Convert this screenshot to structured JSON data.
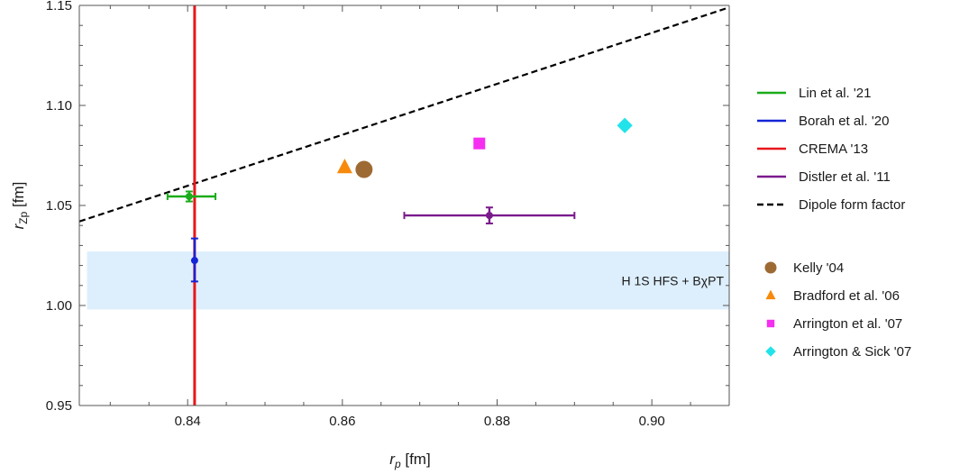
{
  "chart_data": {
    "type": "scatter",
    "xlabel": "r_p [fm]",
    "ylabel": "r_Zp [fm]",
    "xlim": [
      0.826,
      0.91
    ],
    "ylim": [
      0.95,
      1.15
    ],
    "xticks": [
      0.84,
      0.86,
      0.88,
      0.9
    ],
    "yticks": [
      0.95,
      1.0,
      1.05,
      1.1,
      1.15
    ],
    "x_tick_labels": [
      "0.84",
      "0.86",
      "0.88",
      "0.90"
    ],
    "y_tick_labels": [
      "0.95",
      "1.00",
      "1.05",
      "1.10",
      "1.15"
    ],
    "grid": false,
    "legend_position": "right",
    "band": {
      "name": "H 1S HFS + BχPT",
      "x_range": [
        0.827,
        0.91
      ],
      "y_range": [
        0.998,
        1.027
      ],
      "color": "#ddeefc"
    },
    "dipole_line": {
      "name": "Dipole form factor",
      "x": [
        0.826,
        0.91
      ],
      "y": [
        1.042,
        1.149
      ],
      "color": "#000000",
      "style": "dashed"
    },
    "vertical_line": {
      "name": "CREMA '13",
      "x": 0.8409,
      "color": "#e8171c"
    },
    "error_points": [
      {
        "name": "Lin et al. '21",
        "x": 0.8402,
        "y": 1.0545,
        "x_err": [
          0.0028,
          0.0034
        ],
        "y_err": [
          0.0025,
          0.0025
        ],
        "color": "#1aac1a"
      },
      {
        "name": "Borah et al. '20",
        "x": 0.8409,
        "y": 1.0225,
        "x_err": [
          0,
          0
        ],
        "y_err": [
          0.0105,
          0.011
        ],
        "color": "#1424d6"
      },
      {
        "name": "Distler et al. '11",
        "x": 0.879,
        "y": 1.045,
        "x_err": [
          0.011,
          0.011
        ],
        "y_err": [
          0.004,
          0.004
        ],
        "color": "#7a1a8c"
      }
    ],
    "markers": [
      {
        "name": "Kelly '04",
        "x": 0.8628,
        "y": 1.068,
        "shape": "circle",
        "color": "#9e6a34"
      },
      {
        "name": "Bradford et al. '06",
        "x": 0.8603,
        "y": 1.069,
        "shape": "triangle",
        "color": "#f78a0c"
      },
      {
        "name": "Arrington et al. '07",
        "x": 0.8777,
        "y": 1.081,
        "shape": "square",
        "color": "#f52ef0"
      },
      {
        "name": "Arrington & Sick '07",
        "x": 0.8965,
        "y": 1.09,
        "shape": "diamond",
        "color": "#22e3ea"
      }
    ],
    "legend_lines": [
      {
        "label": "Lin et al. '21",
        "color": "#1aac1a",
        "style": "solid"
      },
      {
        "label": "Borah et al. '20",
        "color": "#1424d6",
        "style": "solid"
      },
      {
        "label": "CREMA '13",
        "color": "#e8171c",
        "style": "solid"
      },
      {
        "label": "Distler et al. '11",
        "color": "#7a1a8c",
        "style": "solid"
      },
      {
        "label": "Dipole form factor",
        "color": "#000000",
        "style": "dashed"
      }
    ],
    "legend_markers": [
      {
        "label": "Kelly '04",
        "color": "#9e6a34",
        "shape": "circle"
      },
      {
        "label": "Bradford et al. '06",
        "color": "#f78a0c",
        "shape": "triangle"
      },
      {
        "label": "Arrington et al. '07",
        "color": "#f52ef0",
        "shape": "square"
      },
      {
        "label": "Arrington & Sick '07",
        "color": "#22e3ea",
        "shape": "diamond"
      }
    ]
  }
}
